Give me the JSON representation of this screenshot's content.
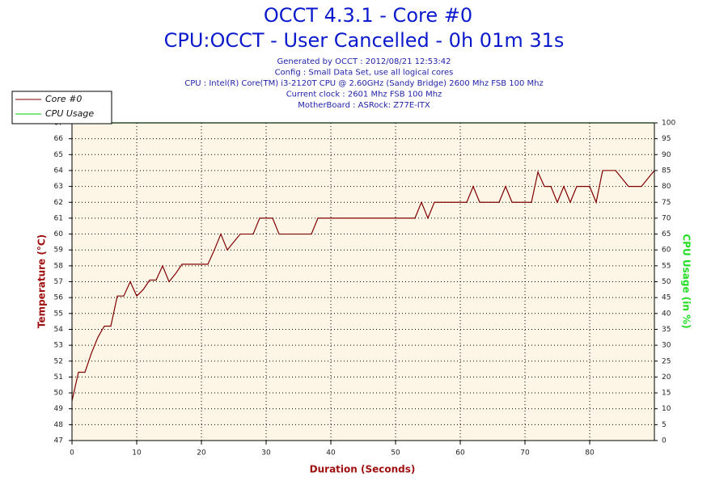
{
  "chart_data": {
    "type": "line",
    "title": "OCCT 4.3.1 - Core #0",
    "subtitle": "CPU:OCCT - User Cancelled - 0h 01m 31s",
    "info": [
      "Generated by OCCT : 2012/08/21 12:53:42",
      "Config : Small Data Set, use all logical cores",
      "CPU : Intel(R) Core(TM) i3-2120T CPU @ 2.60GHz (Sandy Bridge) 2600 Mhz FSB 100 Mhz",
      "Current clock : 2601 Mhz FSB 100 Mhz",
      "MotherBoard : ASRock: Z77E-ITX"
    ],
    "xlabel": "Duration (Seconds)",
    "ylabel": "Temperature (°C)",
    "y2label": "CPU Usage (in %)",
    "x": [
      0,
      1,
      2,
      3,
      4,
      5,
      6,
      7,
      8,
      9,
      10,
      11,
      12,
      13,
      14,
      15,
      16,
      17,
      18,
      19,
      20,
      21,
      22,
      23,
      24,
      25,
      26,
      27,
      28,
      29,
      30,
      31,
      32,
      33,
      34,
      35,
      36,
      37,
      38,
      39,
      40,
      41,
      42,
      43,
      44,
      45,
      46,
      47,
      48,
      49,
      50,
      51,
      52,
      53,
      54,
      55,
      56,
      57,
      58,
      59,
      60,
      61,
      62,
      63,
      64,
      65,
      66,
      67,
      68,
      69,
      70,
      71,
      72,
      73,
      74,
      75,
      76,
      77,
      78,
      79,
      80,
      81,
      82,
      83,
      84,
      85,
      86,
      87,
      88,
      89,
      90
    ],
    "series": [
      {
        "name": "Core #0",
        "color": "#800000",
        "values": [
          49.5,
          51.3,
          51.3,
          52.5,
          53.5,
          54.2,
          54.2,
          56.1,
          56.1,
          57,
          56.1,
          56.5,
          57.1,
          57.1,
          58,
          57,
          57.5,
          58.1,
          58.1,
          58.1,
          58.1,
          58.1,
          59,
          60,
          59,
          59.5,
          60,
          60,
          60,
          61,
          61,
          61,
          60,
          60,
          60,
          60,
          60,
          60,
          61,
          61,
          61,
          61,
          61,
          61,
          61,
          61,
          61,
          61,
          61,
          61,
          61,
          61,
          61,
          61,
          62,
          61,
          62,
          62,
          62,
          62,
          62,
          62,
          63,
          62,
          62,
          62,
          62,
          63,
          62,
          62,
          62,
          62,
          63.9,
          63,
          63,
          62,
          63,
          62,
          63,
          63,
          63,
          62,
          64,
          64,
          64,
          63.5,
          63,
          63,
          63,
          63.5,
          64
        ]
      },
      {
        "name": "CPU Usage",
        "color": "#00cc00",
        "axis": "y2",
        "values": [
          100,
          100,
          100,
          100,
          100,
          100,
          100,
          100,
          100,
          100,
          100,
          100,
          100,
          100,
          100,
          100,
          100,
          100,
          100,
          100,
          100,
          100,
          100,
          100,
          100,
          100,
          100,
          100,
          100,
          100,
          100,
          100,
          100,
          100,
          100,
          100,
          100,
          100,
          100,
          100,
          100,
          100,
          100,
          100,
          100,
          100,
          100,
          100,
          100,
          100,
          100,
          100,
          100,
          100,
          100,
          100,
          100,
          100,
          100,
          100,
          100,
          100,
          100,
          100,
          100,
          100,
          100,
          100,
          100,
          100,
          100,
          100,
          100,
          100,
          100,
          100,
          100,
          100,
          100,
          100,
          100,
          100,
          100,
          100,
          100,
          100,
          100,
          100,
          100,
          100,
          100
        ]
      }
    ],
    "xlim": [
      0,
      90
    ],
    "xticks": [
      0,
      10,
      20,
      30,
      40,
      50,
      60,
      70,
      80
    ],
    "ylim": [
      47,
      67
    ],
    "yticks": [
      47,
      48,
      49,
      50,
      51,
      52,
      53,
      54,
      55,
      56,
      57,
      58,
      59,
      60,
      61,
      62,
      63,
      64,
      65,
      66,
      67
    ],
    "y2lim": [
      0,
      100
    ],
    "y2ticks": [
      0,
      5,
      10,
      15,
      20,
      25,
      30,
      35,
      40,
      45,
      50,
      55,
      60,
      65,
      70,
      75,
      80,
      85,
      90,
      95,
      100
    ],
    "grid": true,
    "legend": "top-left"
  }
}
